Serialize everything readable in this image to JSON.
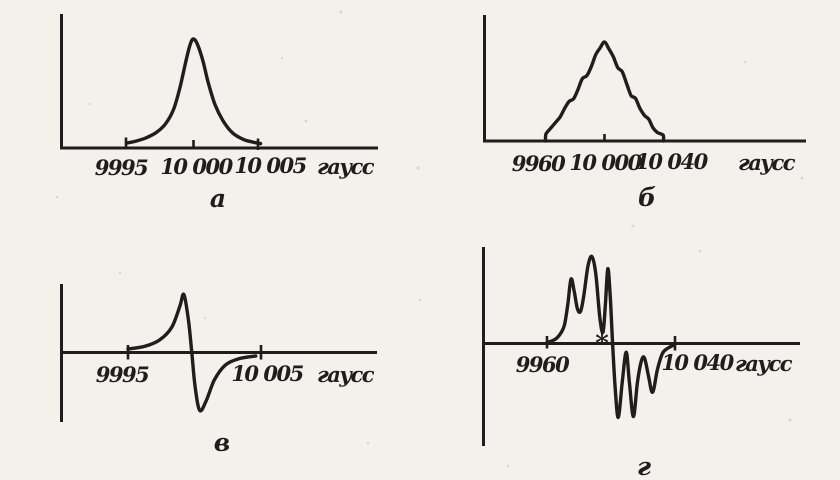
{
  "figure": {
    "ink_color": "#201d1a",
    "paper_color": "#f2f1ec",
    "panels": [
      {
        "letter": "а",
        "tick_labels": [
          "9995",
          "10 000",
          "10 005"
        ],
        "unit_label": "гаусс"
      },
      {
        "letter": "б",
        "tick_labels": [
          "9960",
          "10 000",
          "10 040"
        ],
        "unit_label": "гаусс"
      },
      {
        "letter": "в",
        "tick_labels": [
          "9995",
          "10 005"
        ],
        "unit_label": "гаусс"
      },
      {
        "letter": "г",
        "tick_labels": [
          "9960",
          "10 040"
        ],
        "unit_label": "гаусс",
        "axis_marker": "*"
      }
    ]
  },
  "chart_data": [
    {
      "type": "line",
      "panel": "а",
      "title": "",
      "xlabel": "гаусс",
      "ylabel": "",
      "x_ticks": [
        "9995",
        "10 000",
        "10 005"
      ],
      "xlim": [
        9995,
        10005
      ],
      "ylim": [
        0,
        1.05
      ],
      "x": [
        9995,
        9995.6,
        9996.4,
        9997.2,
        9997.9,
        9998.5,
        9999.0,
        9999.4,
        9999.75,
        10000,
        10000.3,
        10000.7,
        10001.1,
        10001.6,
        10002.2,
        10002.9,
        10003.7,
        10004.4,
        10005
      ],
      "y": [
        0.045,
        0.06,
        0.09,
        0.14,
        0.22,
        0.35,
        0.56,
        0.78,
        0.95,
        1.0,
        0.95,
        0.8,
        0.6,
        0.4,
        0.25,
        0.14,
        0.08,
        0.055,
        0.04
      ]
    },
    {
      "type": "line",
      "panel": "б",
      "title": "",
      "xlabel": "гаусс",
      "ylabel": "",
      "x_ticks": [
        "9960",
        "10 000",
        "10 040"
      ],
      "xlim": [
        9960,
        10040
      ],
      "ylim": [
        0,
        1.05
      ],
      "x": [
        9960,
        9960.3,
        9963,
        9967,
        9970,
        9973,
        9976,
        9979,
        9982,
        9985,
        9988,
        9991,
        9994,
        9997,
        10000,
        10003,
        10006,
        10009,
        10012,
        10015,
        10018,
        10021,
        10024,
        10027,
        10030,
        10033,
        10036,
        10039.7,
        10040
      ],
      "y": [
        0,
        0.07,
        0.12,
        0.19,
        0.245,
        0.33,
        0.4,
        0.425,
        0.52,
        0.63,
        0.66,
        0.75,
        0.87,
        0.94,
        1.0,
        0.93,
        0.85,
        0.74,
        0.7,
        0.58,
        0.46,
        0.43,
        0.33,
        0.26,
        0.22,
        0.13,
        0.085,
        0.06,
        0
      ]
    },
    {
      "type": "line",
      "panel": "в",
      "title": "",
      "xlabel": "гаусс",
      "ylabel": "",
      "x_ticks": [
        "9995",
        "10 005"
      ],
      "xlim": [
        9995,
        10005
      ],
      "ylim": [
        -1.1,
        1.1
      ],
      "x": [
        9995,
        9996.3,
        9997.4,
        9998.3,
        9998.9,
        9999.2,
        9999.55,
        9999.8,
        10000.05,
        10000.4,
        10000.9,
        10001.5,
        10002.3,
        10003.3,
        10004.6
      ],
      "y": [
        0.06,
        0.11,
        0.22,
        0.44,
        0.8,
        1.0,
        0.55,
        0.0,
        -0.6,
        -1.0,
        -0.82,
        -0.47,
        -0.22,
        -0.11,
        -0.06
      ]
    },
    {
      "type": "line",
      "panel": "г",
      "title": "",
      "xlabel": "гаусс",
      "ylabel": "",
      "x_ticks": [
        "9960",
        "10 040"
      ],
      "xlim": [
        9960,
        10040
      ],
      "ylim": [
        -1.1,
        1.2
      ],
      "x": [
        9960,
        9963,
        9966,
        9969,
        9971,
        9973,
        9975,
        9977,
        9979,
        9981,
        9983,
        9985.5,
        9988,
        9990.5,
        9993,
        9995,
        9996.5,
        9998,
        9999.5,
        10001,
        10002.5,
        10004.5,
        10007,
        10009.5,
        10011.5,
        10014,
        10016.5,
        10019,
        10021,
        10023.5,
        10026,
        10029,
        10032,
        10035,
        10039
      ],
      "y": [
        0.01,
        0.03,
        0.06,
        0.13,
        0.22,
        0.45,
        0.74,
        0.6,
        0.4,
        0.37,
        0.55,
        0.88,
        1.0,
        0.8,
        0.3,
        0.13,
        0.45,
        0.86,
        0.55,
        0.0,
        -0.48,
        -0.85,
        -0.45,
        -0.1,
        -0.45,
        -0.84,
        -0.45,
        -0.2,
        -0.17,
        -0.38,
        -0.56,
        -0.3,
        -0.12,
        -0.06,
        -0.02
      ]
    }
  ]
}
